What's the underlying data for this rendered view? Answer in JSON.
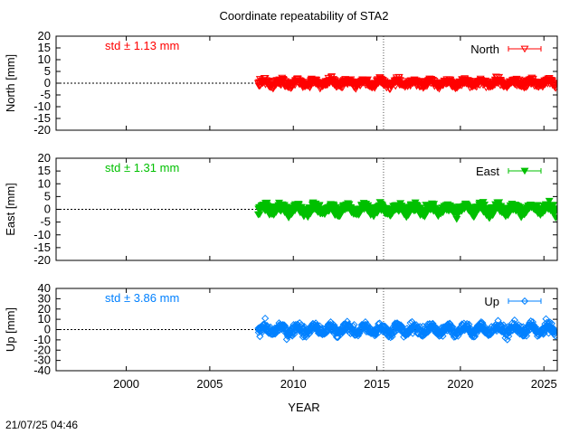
{
  "chart_data": {
    "type": "scatter",
    "title": "Coordinate repeatability of STA2",
    "xlabel": "YEAR",
    "xlim": [
      1995.8,
      2025.8
    ],
    "x_ticks": [
      "2000",
      "2005",
      "2010",
      "2015",
      "2020",
      "2025"
    ],
    "x_tick_values": [
      2000,
      2005,
      2010,
      2015,
      2020,
      2025
    ],
    "vline_x": 2015.4,
    "data_start": 2007.9,
    "data_end": 2025.7,
    "timestamp": "21/07/25 04:46",
    "panels": [
      {
        "id": "north",
        "ylabel": "North [mm]",
        "ylim": [
          -20,
          20
        ],
        "y_ticks": [
          "-20",
          "-15",
          "-10",
          "-5",
          "0",
          "5",
          "10",
          "15",
          "20"
        ],
        "y_tick_values": [
          -20,
          -15,
          -10,
          -5,
          0,
          5,
          10,
          15,
          20
        ],
        "series_name": "North",
        "std_text": "std ± 1.13 mm",
        "std": 1.13,
        "color": "#ff0000",
        "marker": "triangle-down-open"
      },
      {
        "id": "east",
        "ylabel": "East [mm]",
        "ylim": [
          -20,
          20
        ],
        "y_ticks": [
          "-20",
          "-15",
          "-10",
          "-5",
          "0",
          "5",
          "10",
          "15",
          "20"
        ],
        "y_tick_values": [
          -20,
          -15,
          -10,
          -5,
          0,
          5,
          10,
          15,
          20
        ],
        "series_name": "East",
        "std_text": "std ± 1.31 mm",
        "std": 1.31,
        "color": "#00c000",
        "marker": "triangle-down-filled"
      },
      {
        "id": "up",
        "ylabel": "Up [mm]",
        "ylim": [
          -40,
          40
        ],
        "y_ticks": [
          "-40",
          "-30",
          "-20",
          "-10",
          "0",
          "10",
          "20",
          "30",
          "40"
        ],
        "y_tick_values": [
          -40,
          -30,
          -20,
          -10,
          0,
          10,
          20,
          30,
          40
        ],
        "series_name": "Up",
        "std_text": "std ± 3.86 mm",
        "std": 3.86,
        "color": "#0080ff",
        "marker": "diamond-open"
      }
    ]
  }
}
